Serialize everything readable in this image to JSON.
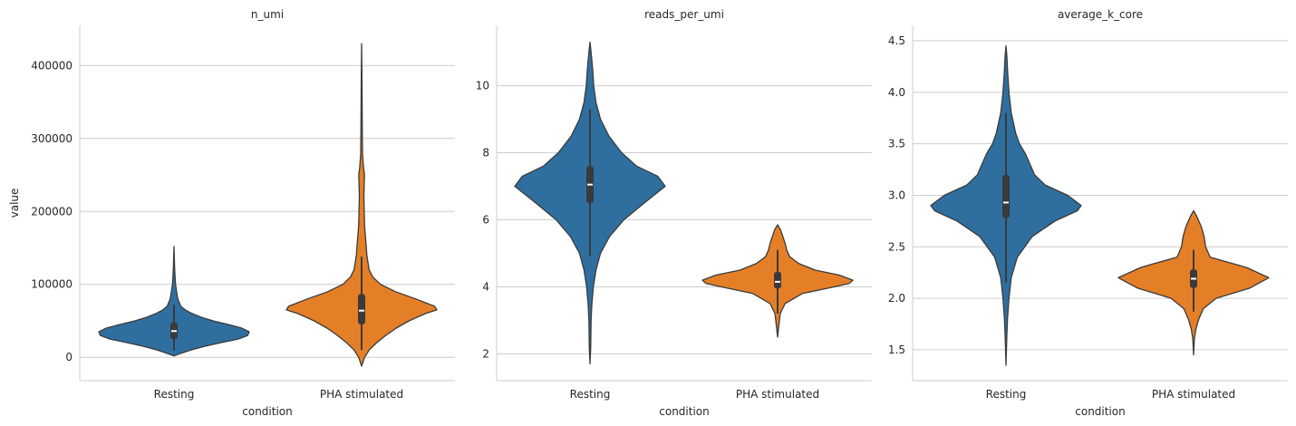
{
  "figure": {
    "colors": {
      "Resting": "#2f6f9f",
      "PHA stimulated": "#e57f27",
      "edge": "#3a3a3a"
    }
  },
  "chart_data": [
    {
      "type": "violin",
      "title": "n_umi",
      "xlabel": "condition",
      "ylabel": "value",
      "categories": [
        "Resting",
        "PHA stimulated"
      ],
      "ylim": [
        -32000,
        455000
      ],
      "yticks": [
        0,
        100000,
        200000,
        300000,
        400000
      ],
      "ytick_labels": [
        "0",
        "100000",
        "200000",
        "300000",
        "400000"
      ],
      "grid": true,
      "violins": [
        {
          "category": "Resting",
          "profile": [
            [
              2000,
              0.0
            ],
            [
              5000,
              0.08
            ],
            [
              10000,
              0.22
            ],
            [
              15000,
              0.4
            ],
            [
              20000,
              0.62
            ],
            [
              25000,
              0.85
            ],
            [
              30000,
              0.98
            ],
            [
              35000,
              1.0
            ],
            [
              40000,
              0.9
            ],
            [
              45000,
              0.72
            ],
            [
              50000,
              0.52
            ],
            [
              55000,
              0.36
            ],
            [
              60000,
              0.24
            ],
            [
              65000,
              0.15
            ],
            [
              70000,
              0.09
            ],
            [
              80000,
              0.05
            ],
            [
              90000,
              0.035
            ],
            [
              100000,
              0.02
            ],
            [
              110000,
              0.014
            ],
            [
              120000,
              0.01
            ],
            [
              130000,
              0.006
            ],
            [
              140000,
              0.004
            ],
            [
              152000,
              0.0
            ]
          ],
          "whisker": [
            9000,
            72000
          ],
          "box": [
            25000,
            48000
          ],
          "median": 36000
        },
        {
          "category": "PHA stimulated",
          "profile": [
            [
              -12000,
              0.0
            ],
            [
              0,
              0.04
            ],
            [
              10000,
              0.1
            ],
            [
              20000,
              0.2
            ],
            [
              30000,
              0.32
            ],
            [
              40000,
              0.46
            ],
            [
              50000,
              0.63
            ],
            [
              60000,
              0.85
            ],
            [
              65000,
              1.0
            ],
            [
              70000,
              0.97
            ],
            [
              80000,
              0.72
            ],
            [
              90000,
              0.45
            ],
            [
              100000,
              0.25
            ],
            [
              110000,
              0.15
            ],
            [
              120000,
              0.1
            ],
            [
              140000,
              0.07
            ],
            [
              160000,
              0.055
            ],
            [
              180000,
              0.04
            ],
            [
              200000,
              0.035
            ],
            [
              220000,
              0.03
            ],
            [
              240000,
              0.035
            ],
            [
              250000,
              0.038
            ],
            [
              260000,
              0.025
            ],
            [
              280000,
              0.012
            ],
            [
              320000,
              0.008
            ],
            [
              380000,
              0.005
            ],
            [
              430000,
              0.0
            ]
          ],
          "whisker": [
            10000,
            138000
          ],
          "box": [
            45000,
            87000
          ],
          "median": 64000
        }
      ]
    },
    {
      "type": "violin",
      "title": "reads_per_umi",
      "xlabel": "condition",
      "ylabel": "",
      "categories": [
        "Resting",
        "PHA stimulated"
      ],
      "ylim": [
        1.2,
        11.8
      ],
      "yticks": [
        2,
        4,
        6,
        8,
        10
      ],
      "ytick_labels": [
        "2",
        "4",
        "6",
        "8",
        "10"
      ],
      "grid": true,
      "violins": [
        {
          "category": "Resting",
          "profile": [
            [
              1.7,
              0.0
            ],
            [
              2.2,
              0.01
            ],
            [
              3.0,
              0.015
            ],
            [
              3.5,
              0.025
            ],
            [
              4.0,
              0.045
            ],
            [
              4.5,
              0.08
            ],
            [
              5.0,
              0.14
            ],
            [
              5.5,
              0.26
            ],
            [
              6.0,
              0.45
            ],
            [
              6.5,
              0.72
            ],
            [
              7.0,
              1.0
            ],
            [
              7.3,
              0.9
            ],
            [
              7.6,
              0.62
            ],
            [
              8.0,
              0.42
            ],
            [
              8.5,
              0.25
            ],
            [
              9.0,
              0.14
            ],
            [
              9.5,
              0.08
            ],
            [
              10.0,
              0.05
            ],
            [
              10.5,
              0.035
            ],
            [
              11.0,
              0.015
            ],
            [
              11.3,
              0.0
            ]
          ],
          "whisker": [
            4.9,
            9.3
          ],
          "box": [
            6.5,
            7.6
          ],
          "median": 7.05
        },
        {
          "category": "PHA stimulated",
          "profile": [
            [
              2.5,
              0.0
            ],
            [
              2.8,
              0.015
            ],
            [
              3.2,
              0.035
            ],
            [
              3.5,
              0.1
            ],
            [
              3.8,
              0.33
            ],
            [
              4.0,
              0.75
            ],
            [
              4.1,
              0.95
            ],
            [
              4.2,
              1.0
            ],
            [
              4.35,
              0.82
            ],
            [
              4.5,
              0.5
            ],
            [
              4.7,
              0.28
            ],
            [
              4.9,
              0.16
            ],
            [
              5.1,
              0.12
            ],
            [
              5.3,
              0.1
            ],
            [
              5.5,
              0.07
            ],
            [
              5.7,
              0.04
            ],
            [
              5.85,
              0.0
            ]
          ],
          "whisker": [
            3.2,
            5.1
          ],
          "box": [
            3.95,
            4.45
          ],
          "median": 4.15
        }
      ]
    },
    {
      "type": "violin",
      "title": "average_k_core",
      "xlabel": "condition",
      "ylabel": "",
      "categories": [
        "Resting",
        "PHA stimulated"
      ],
      "ylim": [
        1.2,
        4.65
      ],
      "yticks": [
        1.5,
        2.0,
        2.5,
        3.0,
        3.5,
        4.0,
        4.5
      ],
      "ytick_labels": [
        "1.5",
        "2.0",
        "2.5",
        "3.0",
        "3.5",
        "4.0",
        "4.5"
      ],
      "grid": true,
      "violins": [
        {
          "category": "Resting",
          "profile": [
            [
              1.35,
              0.0
            ],
            [
              1.6,
              0.01
            ],
            [
              1.8,
              0.02
            ],
            [
              2.0,
              0.04
            ],
            [
              2.2,
              0.07
            ],
            [
              2.4,
              0.15
            ],
            [
              2.6,
              0.35
            ],
            [
              2.75,
              0.65
            ],
            [
              2.85,
              0.95
            ],
            [
              2.9,
              1.0
            ],
            [
              3.0,
              0.82
            ],
            [
              3.1,
              0.52
            ],
            [
              3.2,
              0.38
            ],
            [
              3.3,
              0.32
            ],
            [
              3.4,
              0.26
            ],
            [
              3.5,
              0.18
            ],
            [
              3.6,
              0.13
            ],
            [
              3.8,
              0.07
            ],
            [
              4.0,
              0.04
            ],
            [
              4.2,
              0.022
            ],
            [
              4.35,
              0.012
            ],
            [
              4.45,
              0.0
            ]
          ],
          "whisker": [
            2.15,
            3.8
          ],
          "box": [
            2.78,
            3.2
          ],
          "median": 2.93
        },
        {
          "category": "PHA stimulated",
          "profile": [
            [
              1.45,
              0.0
            ],
            [
              1.6,
              0.01
            ],
            [
              1.7,
              0.03
            ],
            [
              1.8,
              0.07
            ],
            [
              1.9,
              0.13
            ],
            [
              2.0,
              0.3
            ],
            [
              2.1,
              0.75
            ],
            [
              2.2,
              1.0
            ],
            [
              2.3,
              0.7
            ],
            [
              2.4,
              0.22
            ],
            [
              2.5,
              0.16
            ],
            [
              2.6,
              0.14
            ],
            [
              2.7,
              0.1
            ],
            [
              2.8,
              0.04
            ],
            [
              2.85,
              0.0
            ]
          ],
          "whisker": [
            1.87,
            2.47
          ],
          "box": [
            2.1,
            2.28
          ],
          "median": 2.19
        }
      ]
    }
  ]
}
